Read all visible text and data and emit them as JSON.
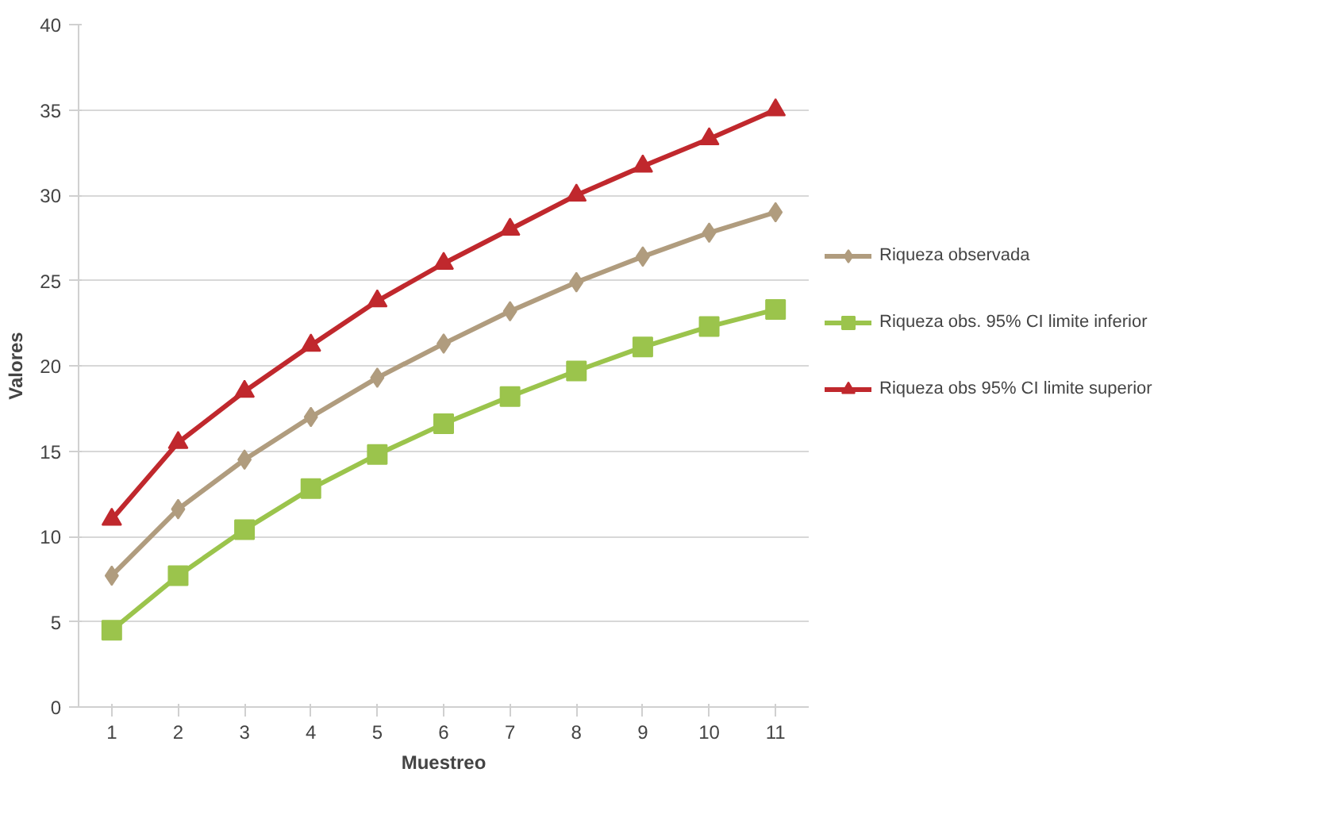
{
  "chart_data": {
    "type": "line",
    "xlabel": "Muestreo",
    "ylabel": "Valores",
    "categories": [
      "1",
      "2",
      "3",
      "4",
      "5",
      "6",
      "7",
      "8",
      "9",
      "10",
      "11"
    ],
    "ylim": [
      0,
      40
    ],
    "yticks": [
      0,
      5,
      10,
      15,
      20,
      25,
      30,
      35,
      40
    ],
    "grid": "y",
    "legend": "right",
    "line_style": "solid",
    "series": [
      {
        "name": "Riqueza observada",
        "color": "#b09c7e",
        "marker": "diamond",
        "values": [
          7.7,
          11.6,
          14.5,
          17,
          19.3,
          21.3,
          23.2,
          24.9,
          26.4,
          27.8,
          29
        ]
      },
      {
        "name": "Riqueza obs. 95% CI limite inferior",
        "color": "#9bc44c",
        "marker": "square",
        "values": [
          4.5,
          7.7,
          10.4,
          12.8,
          14.8,
          16.6,
          18.2,
          19.7,
          21.1,
          22.3,
          23.3
        ]
      },
      {
        "name": "Riqueza obs 95% CI limite superior",
        "color": "#c0282d",
        "marker": "triangle",
        "values": [
          11,
          15.5,
          18.5,
          21.2,
          23.8,
          26,
          28,
          30,
          31.7,
          33.3,
          35
        ]
      }
    ]
  }
}
